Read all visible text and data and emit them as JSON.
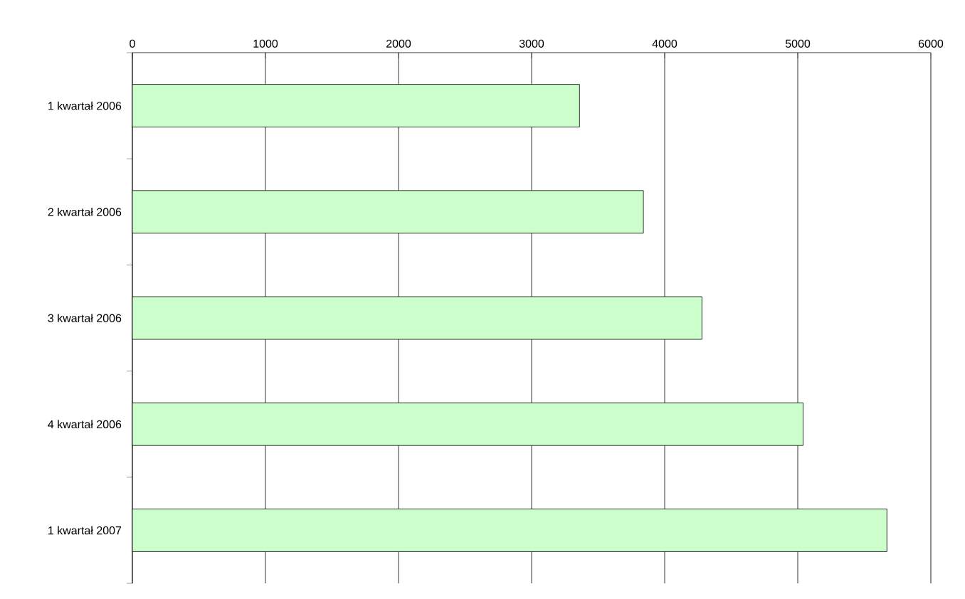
{
  "chart_data": {
    "type": "bar",
    "orientation": "horizontal",
    "categories": [
      "1 kwartał 2006",
      "2 kwartał 2006",
      "3 kwartał 2006",
      "4 kwartał 2006",
      "1 kwartał 2007"
    ],
    "values": [
      3360,
      3840,
      4280,
      5040,
      5670
    ],
    "color": "#ccffcc",
    "xlim": [
      0,
      6000
    ],
    "xticks": [
      0,
      1000,
      2000,
      3000,
      4000,
      5000,
      6000
    ],
    "grid": "x"
  }
}
